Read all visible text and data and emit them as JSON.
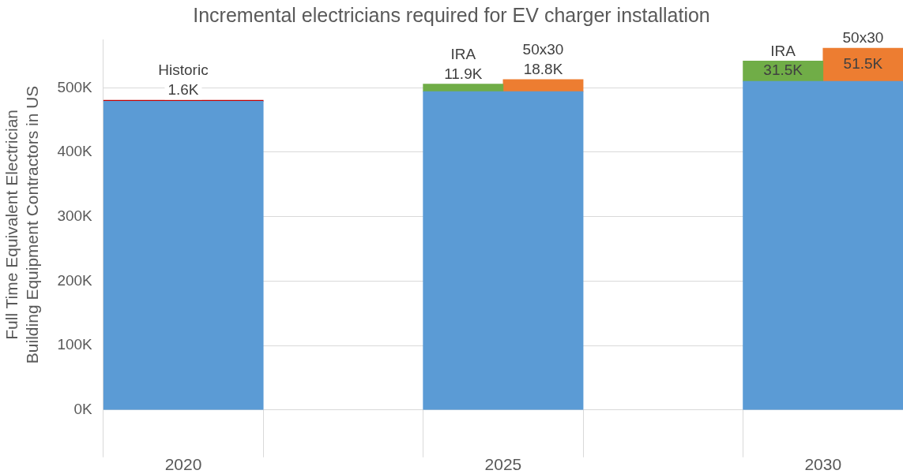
{
  "chart_data": {
    "type": "bar",
    "title": "Incremental electricians required for EV charger installation",
    "ylabel": "Full Time Equivalent Electrician Building Equipment Contractors in US",
    "categories": [
      "2020",
      null,
      "2025",
      null,
      "2030"
    ],
    "series": [
      {
        "color": "#5b9bd5",
        "values": [
          479,
          null,
          494,
          null,
          510
        ]
      },
      {
        "name": "Historic",
        "color": "#c00000",
        "values": [
          1.6,
          null,
          null,
          null,
          null
        ],
        "base": [
          479,
          null,
          null,
          null,
          null
        ],
        "value_labels": [
          "1.6K",
          null,
          null,
          null,
          null
        ]
      },
      {
        "name": "IRA",
        "color": "#70ad47",
        "values": [
          null,
          null,
          11.9,
          null,
          31.5
        ],
        "base": [
          null,
          null,
          494,
          null,
          510
        ],
        "value_labels": [
          null,
          null,
          "11.9K",
          null,
          "31.5K"
        ]
      },
      {
        "name": "50x30",
        "color": "#ed7d31",
        "values": [
          null,
          null,
          18.8,
          null,
          51.5
        ],
        "base": [
          null,
          null,
          494,
          null,
          510
        ],
        "value_labels": [
          null,
          null,
          "18.8K",
          null,
          "51.5K"
        ]
      }
    ],
    "ylim": [
      0,
      575
    ],
    "yticks": [
      {
        "value": 0,
        "label": "0K"
      },
      {
        "value": 100,
        "label": "100K"
      },
      {
        "value": 200,
        "label": "200K"
      },
      {
        "value": 300,
        "label": "300K"
      },
      {
        "value": 400,
        "label": "400K"
      },
      {
        "value": 500,
        "label": "500K"
      }
    ],
    "grid": "y",
    "legend": false
  }
}
